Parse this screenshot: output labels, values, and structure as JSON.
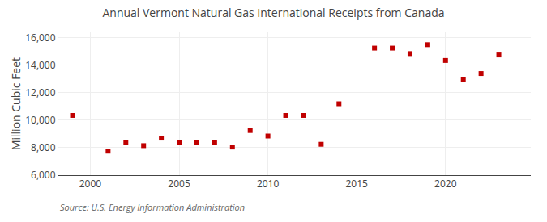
{
  "chart_data": {
    "type": "scatter",
    "title": "Annual Vermont Natural Gas International Receipts from Canada",
    "ylabel": "Million Cubic Feet",
    "annotations": [
      "Source: U.S. Energy Information Administration"
    ],
    "x": [
      1999,
      2001,
      2002,
      2003,
      2004,
      2005,
      2006,
      2007,
      2008,
      2009,
      2010,
      2011,
      2012,
      2013,
      2014,
      2016,
      2017,
      2018,
      2019,
      2020,
      2021,
      2022,
      2023
    ],
    "values": [
      10350,
      7750,
      8350,
      8150,
      8700,
      8350,
      8350,
      8350,
      8050,
      9250,
      8850,
      10350,
      10350,
      8250,
      11200,
      15250,
      15250,
      14850,
      15500,
      14350,
      12950,
      13400,
      14750
    ],
    "color": "#c00000",
    "marker": "square",
    "xlim": [
      1998.2,
      2024.8
    ],
    "xticks": [
      2000,
      2005,
      2010,
      2015,
      2020
    ],
    "ylim": [
      6000,
      16400
    ],
    "yticks": [
      {
        "value": 6000,
        "label": "6,000"
      },
      {
        "value": 8000,
        "label": "8,000"
      },
      {
        "value": 10000,
        "label": "10,000"
      },
      {
        "value": 12000,
        "label": "12,000"
      },
      {
        "value": 14000,
        "label": "14,000"
      },
      {
        "value": 16000,
        "label": "16,000"
      }
    ],
    "grid": true
  }
}
